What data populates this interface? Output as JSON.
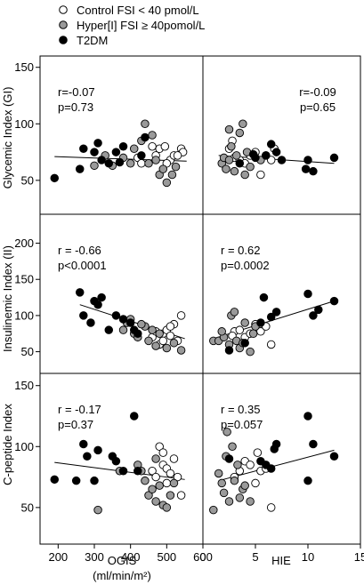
{
  "legend": {
    "items": [
      {
        "label": "Control FSI < 40 pmol/L",
        "fill": "#ffffff"
      },
      {
        "label": "Hyper[I] FSI ≥ 40pomol/L",
        "fill": "#9a9a9a"
      },
      {
        "label": "T2DM",
        "fill": "#000000"
      }
    ],
    "placement": "top-left"
  },
  "x_axes": [
    {
      "label_lines": [
        "OGIS",
        "(ml/min/m²)"
      ],
      "ticks": [
        200,
        300,
        400,
        500,
        600
      ],
      "range": [
        150,
        600
      ]
    },
    {
      "label_lines": [
        "HIE"
      ],
      "ticks": [
        0,
        5,
        10,
        15
      ],
      "range": [
        0,
        15
      ]
    }
  ],
  "y_axes": [
    {
      "label": "Glycemic Index (GI)",
      "ticks": [
        50,
        100,
        150
      ],
      "range": [
        20,
        160
      ]
    },
    {
      "label": "Insulinemic Index (II)",
      "ticks": [
        50,
        100,
        150,
        200
      ],
      "range": [
        20,
        240
      ]
    },
    {
      "label": "C-peptide Index",
      "ticks": [
        50,
        100,
        150
      ],
      "range": [
        20,
        160
      ]
    }
  ],
  "chart_data": [
    {
      "type": "scatter",
      "row": 0,
      "col": 0,
      "annotation": [
        "r=-0.07",
        "p=0.73"
      ],
      "annotation_align": "left",
      "fit": {
        "x": [
          190,
          555
        ],
        "y": [
          71,
          67
        ]
      },
      "series": [
        {
          "group": "control",
          "points": [
            [
              420,
              70
            ],
            [
              470,
              72
            ],
            [
              480,
              78
            ],
            [
              495,
              80
            ],
            [
              510,
              68
            ],
            [
              520,
              72
            ],
            [
              540,
              78
            ],
            [
              545,
              75
            ],
            [
              430,
              65
            ],
            [
              460,
              80
            ],
            [
              500,
              65
            ],
            [
              530,
              72
            ]
          ]
        },
        {
          "group": "hyper",
          "points": [
            [
              430,
              85
            ],
            [
              440,
              100
            ],
            [
              450,
              65
            ],
            [
              460,
              90
            ],
            [
              470,
              68
            ],
            [
              480,
              55
            ],
            [
              490,
              60
            ],
            [
              500,
              48
            ],
            [
              515,
              55
            ],
            [
              525,
              62
            ],
            [
              400,
              65
            ],
            [
              300,
              63
            ],
            [
              330,
              72
            ],
            [
              350,
              63
            ],
            [
              380,
              70
            ],
            [
              410,
              78
            ]
          ]
        },
        {
          "group": "t2dm",
          "points": [
            [
              190,
              52
            ],
            [
              260,
              60
            ],
            [
              270,
              78
            ],
            [
              300,
              75
            ],
            [
              310,
              83
            ],
            [
              320,
              68
            ],
            [
              340,
              65
            ],
            [
              360,
              75
            ],
            [
              370,
              66
            ],
            [
              380,
              80
            ],
            [
              430,
              72
            ],
            [
              440,
              88
            ]
          ]
        }
      ]
    },
    {
      "type": "scatter",
      "row": 0,
      "col": 1,
      "annotation": [
        "r=-0.09",
        "p=0.65"
      ],
      "annotation_align": "right",
      "fit": {
        "x": [
          1.5,
          12.5
        ],
        "y": [
          72,
          65
        ]
      },
      "series": [
        {
          "group": "control",
          "points": [
            [
              2.5,
              78
            ],
            [
              3,
              70
            ],
            [
              3.5,
              68
            ],
            [
              4,
              65
            ],
            [
              4.5,
              72
            ],
            [
              5,
              75
            ],
            [
              5.5,
              55
            ],
            [
              6.5,
              68
            ],
            [
              6.8,
              78
            ],
            [
              2.8,
              85
            ]
          ]
        },
        {
          "group": "hyper",
          "points": [
            [
              1.8,
              65
            ],
            [
              2,
              70
            ],
            [
              2.2,
              60
            ],
            [
              2.5,
              68
            ],
            [
              2.7,
              80
            ],
            [
              3,
              58
            ],
            [
              3.2,
              72
            ],
            [
              3.5,
              92
            ],
            [
              3.8,
              100
            ],
            [
              4,
              55
            ],
            [
              4.2,
              75
            ],
            [
              4.5,
              62
            ],
            [
              5.5,
              68
            ],
            [
              6,
              72
            ],
            [
              2.5,
              95
            ]
          ]
        },
        {
          "group": "t2dm",
          "points": [
            [
              3.5,
              65
            ],
            [
              5,
              70
            ],
            [
              6,
              72
            ],
            [
              6.5,
              82
            ],
            [
              7,
              75
            ],
            [
              7.5,
              68
            ],
            [
              10,
              68
            ],
            [
              10.5,
              58
            ],
            [
              12.5,
              70
            ],
            [
              9.8,
              60
            ],
            [
              4.8,
              73
            ]
          ]
        }
      ]
    },
    {
      "type": "scatter",
      "row": 1,
      "col": 0,
      "annotation": [
        "r = -0.66",
        "p<0.0001"
      ],
      "annotation_align": "left",
      "fit": {
        "x": [
          260,
          550
        ],
        "y": [
          115,
          68
        ]
      },
      "series": [
        {
          "group": "control",
          "points": [
            [
              460,
              70
            ],
            [
              470,
              78
            ],
            [
              480,
              60
            ],
            [
              490,
              75
            ],
            [
              500,
              80
            ],
            [
              510,
              72
            ],
            [
              520,
              88
            ],
            [
              540,
              100
            ],
            [
              530,
              65
            ],
            [
              490,
              65
            ],
            [
              510,
              85
            ]
          ]
        },
        {
          "group": "hyper",
          "points": [
            [
              380,
              80
            ],
            [
              390,
              90
            ],
            [
              400,
              95
            ],
            [
              410,
              75
            ],
            [
              420,
              70
            ],
            [
              440,
              85
            ],
            [
              460,
              80
            ],
            [
              480,
              75
            ],
            [
              500,
              55
            ],
            [
              520,
              62
            ],
            [
              540,
              52
            ],
            [
              450,
              65
            ],
            [
              470,
              58
            ],
            [
              430,
              88
            ]
          ]
        },
        {
          "group": "t2dm",
          "points": [
            [
              260,
              132
            ],
            [
              270,
              100
            ],
            [
              290,
              90
            ],
            [
              300,
              120
            ],
            [
              310,
              115
            ],
            [
              320,
              125
            ],
            [
              340,
              80
            ],
            [
              360,
              100
            ],
            [
              380,
              95
            ],
            [
              400,
              90
            ],
            [
              420,
              75
            ],
            [
              410,
              80
            ]
          ]
        }
      ]
    },
    {
      "type": "scatter",
      "row": 1,
      "col": 1,
      "annotation": [
        "r = 0.62",
        "p=0.0002"
      ],
      "annotation_align": "left",
      "fit": {
        "x": [
          1,
          12.5
        ],
        "y": [
          68,
          120
        ]
      },
      "series": [
        {
          "group": "control",
          "points": [
            [
              3,
              78
            ],
            [
              3.5,
              80
            ],
            [
              4,
              70
            ],
            [
              4.5,
              75
            ],
            [
              5,
              88
            ],
            [
              5.5,
              78
            ],
            [
              6.5,
              60
            ],
            [
              6,
              85
            ],
            [
              2.8,
              72
            ]
          ]
        },
        {
          "group": "hyper",
          "points": [
            [
              1,
              65
            ],
            [
              1.5,
              65
            ],
            [
              2,
              70
            ],
            [
              2.5,
              60
            ],
            [
              2.7,
              100
            ],
            [
              3,
              105
            ],
            [
              3.2,
              65
            ],
            [
              3.5,
              55
            ],
            [
              3.8,
              62
            ],
            [
              4,
              90
            ],
            [
              4.5,
              50
            ],
            [
              5,
              85
            ],
            [
              1.8,
              78
            ],
            [
              4.8,
              75
            ]
          ]
        },
        {
          "group": "t2dm",
          "points": [
            [
              2.5,
              52
            ],
            [
              4,
              62
            ],
            [
              5.5,
              90
            ],
            [
              5.8,
              125
            ],
            [
              6.5,
              98
            ],
            [
              7,
              105
            ],
            [
              10,
              130
            ],
            [
              10.5,
              100
            ],
            [
              11,
              108
            ],
            [
              12.5,
              120
            ]
          ]
        }
      ]
    },
    {
      "type": "scatter",
      "row": 2,
      "col": 0,
      "annotation": [
        "r = -0.17",
        "p=0.37"
      ],
      "annotation_align": "left",
      "fit": {
        "x": [
          190,
          550
        ],
        "y": [
          87,
          73
        ]
      },
      "series": [
        {
          "group": "control",
          "points": [
            [
              460,
              80
            ],
            [
              470,
              75
            ],
            [
              480,
              100
            ],
            [
              490,
              85
            ],
            [
              500,
              82
            ],
            [
              510,
              78
            ],
            [
              520,
              90
            ],
            [
              530,
              75
            ],
            [
              540,
              60
            ],
            [
              500,
              70
            ],
            [
              490,
              95
            ]
          ]
        },
        {
          "group": "hyper",
          "points": [
            [
              310,
              48
            ],
            [
              370,
              80
            ],
            [
              420,
              85
            ],
            [
              430,
              80
            ],
            [
              440,
              72
            ],
            [
              450,
              60
            ],
            [
              460,
              65
            ],
            [
              470,
              55
            ],
            [
              480,
              68
            ],
            [
              490,
              52
            ],
            [
              500,
              50
            ],
            [
              510,
              60
            ],
            [
              520,
              70
            ],
            [
              470,
              90
            ]
          ]
        },
        {
          "group": "t2dm",
          "points": [
            [
              190,
              73
            ],
            [
              250,
              72
            ],
            [
              270,
              102
            ],
            [
              280,
              92
            ],
            [
              300,
              72
            ],
            [
              310,
              97
            ],
            [
              350,
              92
            ],
            [
              360,
              88
            ],
            [
              380,
              80
            ],
            [
              410,
              125
            ],
            [
              420,
              80
            ]
          ]
        }
      ]
    },
    {
      "type": "scatter",
      "row": 2,
      "col": 1,
      "annotation": [
        "r = 0.35",
        "p=0.057"
      ],
      "annotation_align": "left",
      "fit": {
        "x": [
          1.5,
          12.5
        ],
        "y": [
          72,
          97
        ]
      },
      "series": [
        {
          "group": "control",
          "points": [
            [
              3,
              75
            ],
            [
              3.5,
              80
            ],
            [
              4,
              88
            ],
            [
              4.5,
              85
            ],
            [
              5,
              70
            ],
            [
              5.5,
              80
            ],
            [
              6,
              82
            ],
            [
              6.5,
              50
            ],
            [
              5.2,
              95
            ]
          ]
        },
        {
          "group": "hyper",
          "points": [
            [
              1,
              48
            ],
            [
              1.5,
              78
            ],
            [
              2,
              62
            ],
            [
              2.3,
              112
            ],
            [
              2.5,
              55
            ],
            [
              2.8,
              100
            ],
            [
              3,
              72
            ],
            [
              3.3,
              85
            ],
            [
              3.5,
              58
            ],
            [
              3.8,
              65
            ],
            [
              4,
              68
            ],
            [
              2.2,
              92
            ],
            [
              4.5,
              55
            ],
            [
              1.8,
              70
            ]
          ]
        },
        {
          "group": "t2dm",
          "points": [
            [
              2.5,
              90
            ],
            [
              5.5,
              88
            ],
            [
              6,
              85
            ],
            [
              6.5,
              82
            ],
            [
              6.8,
              98
            ],
            [
              7,
              102
            ],
            [
              10,
              72
            ],
            [
              10,
              125
            ],
            [
              10.5,
              102
            ],
            [
              12.5,
              92
            ]
          ]
        }
      ]
    }
  ]
}
